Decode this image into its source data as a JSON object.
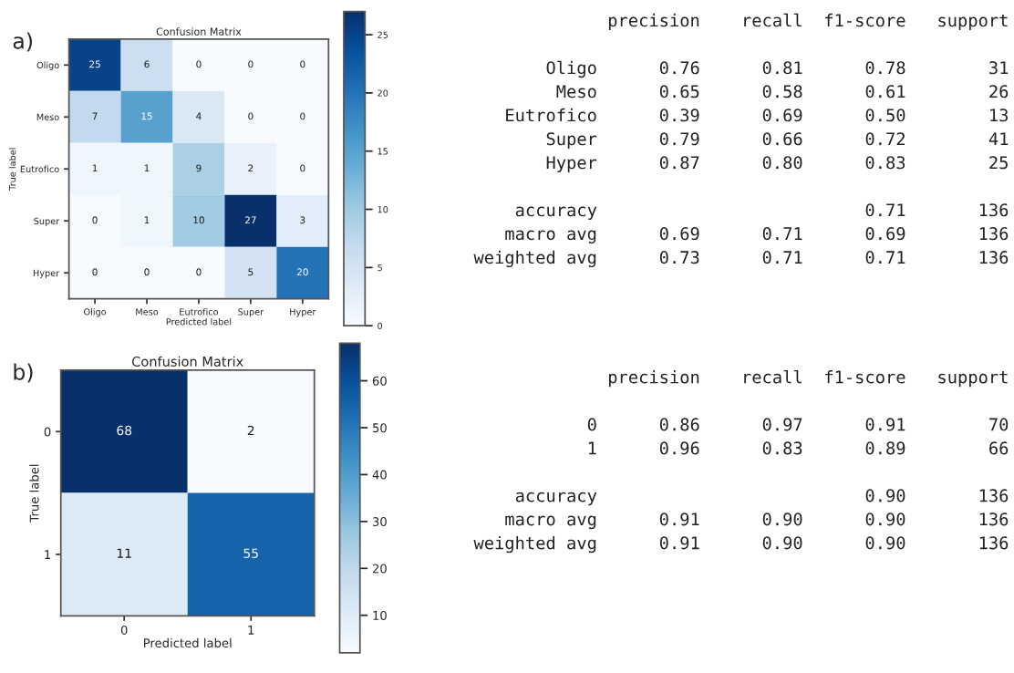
{
  "chart_data": [
    {
      "type": "heatmap",
      "title": "Confusion Matrix",
      "xlabel": "Predicted label",
      "ylabel": "True label",
      "annotations": [
        "a)"
      ],
      "categories": [
        "Oligo",
        "Meso",
        "Eutrofico",
        "Super",
        "Hyper"
      ],
      "y_categories": [
        "Oligo",
        "Meso",
        "Eutrofico",
        "Super",
        "Hyper"
      ],
      "cells": [
        [
          25,
          6,
          0,
          0,
          0
        ],
        [
          7,
          15,
          4,
          0,
          0
        ],
        [
          1,
          1,
          9,
          2,
          0
        ],
        [
          0,
          1,
          10,
          27,
          3
        ],
        [
          0,
          0,
          0,
          5,
          20
        ]
      ],
      "data_labels": true,
      "clim": [
        0,
        27
      ],
      "cticks": [
        0,
        5,
        10,
        15,
        20,
        25
      ]
    },
    {
      "type": "other",
      "annotations": [
        "precision    recall  f1-score   support",
        "Oligo      0.76      0.81      0.78        31",
        "Meso      0.65      0.58      0.61        26",
        "Eutrofico      0.39      0.69      0.50        13",
        "Super      0.79      0.66      0.72        41",
        "Hyper      0.87      0.80      0.83        25",
        "accuracy                          0.71       136",
        "macro avg      0.69      0.71      0.69       136",
        "weighted avg      0.73      0.71      0.71       136"
      ]
    },
    {
      "type": "heatmap",
      "title": "Confusion Matrix",
      "xlabel": "Predicted label",
      "ylabel": "True label",
      "annotations": [
        "b)"
      ],
      "categories": [
        "0",
        "1"
      ],
      "y_categories": [
        "0",
        "1"
      ],
      "cells": [
        [
          68,
          2
        ],
        [
          11,
          55
        ]
      ],
      "data_labels": true,
      "clim": [
        2,
        68
      ],
      "cticks": [
        10,
        20,
        30,
        40,
        50,
        60
      ]
    },
    {
      "type": "other",
      "annotations": [
        "precision    recall  f1-score   support",
        "0      0.86      0.97      0.91        70",
        "1      0.96      0.83      0.89        66",
        "accuracy                          0.90       136",
        "macro avg      0.91      0.90      0.90       136",
        "weighted avg      0.91      0.90      0.90       136"
      ]
    }
  ]
}
